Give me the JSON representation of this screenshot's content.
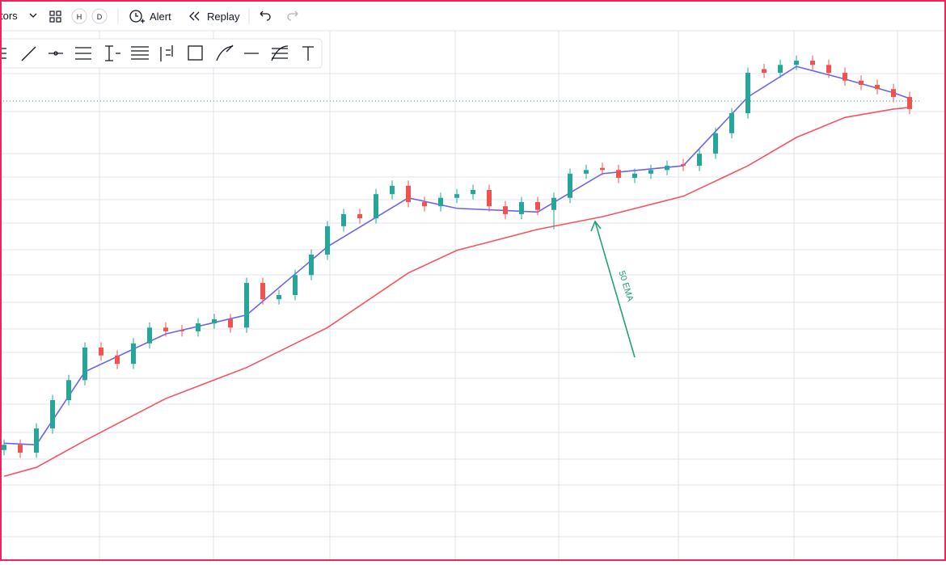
{
  "toolbar": {
    "indicators": "tors",
    "h": "H",
    "d": "D",
    "alert": "Alert",
    "replay": "Replay"
  },
  "chart_data": {
    "type": "candlestick",
    "ylim": [
      0,
      100
    ],
    "up_color": "#26a69a",
    "down_color": "#ef5350",
    "open": [
      20.5,
      21.5,
      20.0,
      24.6,
      30.0,
      33.8,
      40.0,
      38.5,
      36.9,
      40.8,
      43.8,
      43.3,
      43.1,
      44.6,
      45.4,
      43.8,
      52.3,
      49.2,
      50.0,
      53.8,
      57.7,
      63.1,
      65.4,
      64.6,
      69.2,
      70.8,
      67.7,
      66.9,
      68.5,
      69.2,
      70.0,
      66.9,
      65.4,
      67.7,
      66.2,
      68.5,
      73.1,
      74.2,
      73.8,
      72.3,
      73.1,
      73.8,
      74.9,
      74.6,
      76.9,
      80.8,
      84.6,
      93.0,
      92.3,
      93.8,
      94.6,
      93.8,
      92.3,
      90.8,
      90.0,
      89.2,
      87.7
    ],
    "high": [
      22.5,
      22.5,
      25.6,
      31.0,
      34.8,
      41.0,
      41.0,
      39.5,
      41.8,
      44.8,
      44.8,
      44.3,
      45.6,
      46.4,
      46.4,
      53.3,
      53.3,
      51.0,
      54.8,
      58.7,
      64.1,
      66.4,
      66.4,
      70.2,
      71.8,
      71.8,
      68.7,
      69.5,
      70.2,
      71.0,
      71.0,
      67.9,
      68.7,
      68.7,
      69.5,
      74.1,
      74.8,
      75.2,
      74.8,
      74.1,
      74.8,
      75.6,
      75.9,
      77.9,
      81.8,
      85.6,
      93.3,
      94.0,
      94.8,
      95.6,
      95.6,
      94.8,
      93.3,
      91.8,
      91.0,
      90.2,
      88.7
    ],
    "low": [
      19.5,
      19.0,
      19.0,
      23.6,
      29.0,
      32.8,
      37.5,
      35.9,
      35.9,
      39.8,
      42.1,
      42.1,
      42.1,
      43.6,
      42.8,
      42.8,
      48.2,
      48.2,
      49.0,
      52.8,
      56.7,
      62.1,
      63.6,
      63.6,
      68.2,
      66.7,
      65.9,
      65.9,
      67.5,
      68.2,
      65.9,
      64.4,
      64.4,
      65.2,
      62.5,
      67.5,
      72.1,
      72.8,
      71.3,
      71.3,
      72.1,
      72.8,
      73.6,
      73.6,
      75.9,
      79.8,
      83.6,
      91.3,
      91.3,
      92.8,
      92.8,
      91.3,
      89.8,
      89.0,
      88.2,
      86.7,
      84.4
    ],
    "close": [
      21.5,
      20.0,
      24.6,
      30.0,
      33.8,
      40.0,
      38.5,
      36.9,
      40.8,
      43.8,
      43.1,
      43.1,
      44.6,
      45.4,
      43.8,
      52.3,
      49.2,
      50.0,
      53.8,
      57.7,
      63.1,
      65.4,
      64.6,
      69.2,
      70.8,
      67.7,
      66.9,
      68.5,
      69.2,
      70.0,
      66.9,
      65.4,
      67.7,
      66.2,
      68.5,
      73.1,
      73.8,
      73.8,
      72.3,
      73.1,
      73.8,
      74.6,
      74.6,
      76.9,
      80.8,
      84.6,
      92.3,
      92.3,
      93.8,
      94.6,
      93.8,
      92.3,
      90.8,
      90.0,
      89.2,
      87.7,
      85.4
    ],
    "series": [
      {
        "color": "#f7525f",
        "x": [
          0,
          2,
          5,
          10,
          15,
          20,
          25,
          28,
          33,
          37,
          42,
          46,
          49,
          52,
          55,
          56
        ],
        "values": [
          15.5,
          17.2,
          22.3,
          30.3,
          36.2,
          43.8,
          54.2,
          58.5,
          62.5,
          64.9,
          68.8,
          74.6,
          80.0,
          83.8,
          85.4,
          85.7
        ]
      },
      {
        "color": "#6b63f0",
        "x": [
          0,
          2,
          5,
          10,
          15,
          20,
          25,
          28,
          33,
          37,
          42,
          46,
          49,
          52,
          55,
          56
        ],
        "values": [
          21.8,
          21.5,
          35.4,
          42.6,
          46.2,
          59.2,
          68.5,
          66.5,
          65.8,
          73.1,
          74.6,
          87.7,
          93.5,
          91.1,
          88.5,
          87.4
        ]
      }
    ],
    "annotation": "50 EMA"
  }
}
